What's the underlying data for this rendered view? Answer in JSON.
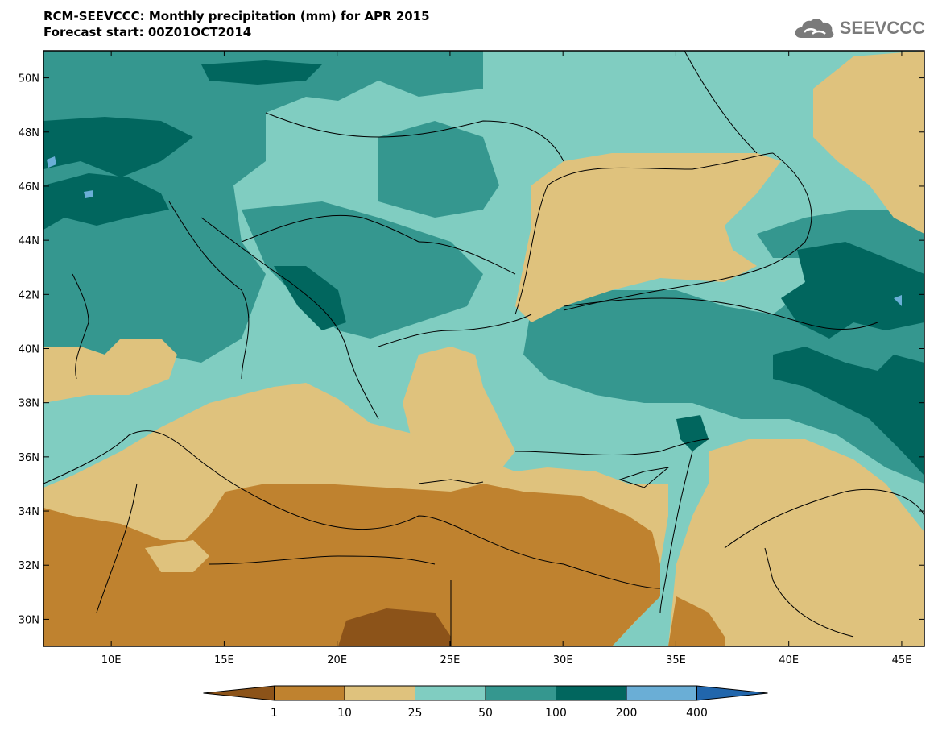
{
  "header": {
    "title": "RCM-SEEVCCC: Monthly precipitation (mm) for APR 2015",
    "subtitle": "Forecast start: 00Z01OCT2014"
  },
  "logo": {
    "text": "SEEVCCC",
    "icon": "cloud-icon",
    "color": "#7a7a7a"
  },
  "map": {
    "lon_range": [
      7,
      46
    ],
    "lat_range": [
      29,
      51
    ],
    "lat_ticks": [
      {
        "value": 50,
        "label": "50N"
      },
      {
        "value": 48,
        "label": "48N"
      },
      {
        "value": 46,
        "label": "46N"
      },
      {
        "value": 44,
        "label": "44N"
      },
      {
        "value": 42,
        "label": "42N"
      },
      {
        "value": 40,
        "label": "40N"
      },
      {
        "value": 38,
        "label": "38N"
      },
      {
        "value": 36,
        "label": "36N"
      },
      {
        "value": 34,
        "label": "34N"
      },
      {
        "value": 32,
        "label": "32N"
      },
      {
        "value": 30,
        "label": "30N"
      }
    ],
    "lon_ticks": [
      {
        "value": 10,
        "label": "10E"
      },
      {
        "value": 15,
        "label": "15E"
      },
      {
        "value": 20,
        "label": "20E"
      },
      {
        "value": 25,
        "label": "25E"
      },
      {
        "value": 30,
        "label": "30E"
      },
      {
        "value": 35,
        "label": "35E"
      },
      {
        "value": 40,
        "label": "40E"
      },
      {
        "value": 45,
        "label": "45E"
      }
    ]
  },
  "colorbar": {
    "colors": [
      "#8c5319",
      "#bf822f",
      "#dfc27d",
      "#80cdc1",
      "#35978f",
      "#01665e",
      "#6aaed6",
      "#2166ac"
    ],
    "labels": [
      "1",
      "10",
      "25",
      "50",
      "100",
      "200",
      "400"
    ]
  }
}
